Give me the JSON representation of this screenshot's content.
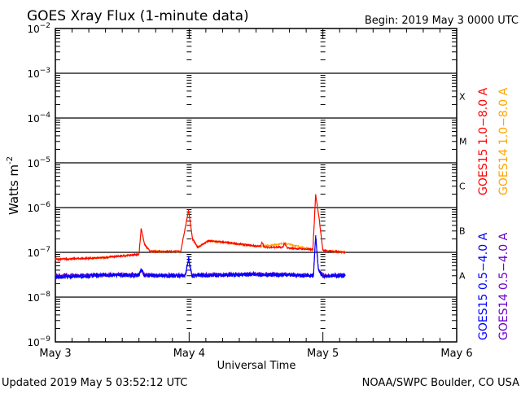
{
  "chart_data": {
    "type": "line",
    "title": "GOES Xray Flux (1-minute data)",
    "begin_label": "Begin:  2019 May 3 0000 UTC",
    "xlabel": "Universal Time",
    "ylabel": "Watts m",
    "ylabel_sup": "-2",
    "yscale": "log",
    "ylim": [
      1e-09,
      0.01
    ],
    "y_ticks": [
      {
        "exp": "-2"
      },
      {
        "exp": "-3"
      },
      {
        "exp": "-4"
      },
      {
        "exp": "-5"
      },
      {
        "exp": "-6"
      },
      {
        "exp": "-7"
      },
      {
        "exp": "-8"
      },
      {
        "exp": "-9"
      }
    ],
    "xlim_hours": [
      0,
      72
    ],
    "x_ticks": [
      {
        "label": "May 3",
        "hour": 0
      },
      {
        "label": "May 4",
        "hour": 24
      },
      {
        "label": "May 5",
        "hour": 48
      },
      {
        "label": "May 6",
        "hour": 72
      }
    ],
    "flare_classes": [
      "X",
      "M",
      "C",
      "B",
      "A"
    ],
    "series": [
      {
        "name": "GOES15 1.0-8.0 A",
        "color": "#ff0000",
        "points": [
          [
            0,
            7e-08
          ],
          [
            8,
            7.5e-08
          ],
          [
            15,
            9e-08
          ],
          [
            15.4,
            3.5e-07
          ],
          [
            16,
            1.5e-07
          ],
          [
            17,
            1.05e-07
          ],
          [
            22.5,
            1.05e-07
          ],
          [
            23.9,
            9e-07
          ],
          [
            24.6,
            2e-07
          ],
          [
            25.5,
            1.3e-07
          ],
          [
            27.5,
            1.8e-07
          ],
          [
            30,
            1.7e-07
          ],
          [
            36.8,
            1.35e-07
          ],
          [
            37.1,
            1.7e-07
          ],
          [
            37.5,
            1.3e-07
          ],
          [
            40.8,
            1.3e-07
          ],
          [
            41.1,
            1.6e-07
          ],
          [
            41.6,
            1.25e-07
          ],
          [
            46.2,
            1.15e-07
          ],
          [
            46.7,
            2e-06
          ],
          [
            47.3,
            6e-07
          ],
          [
            48,
            1.1e-07
          ],
          [
            52,
            1e-07
          ]
        ]
      },
      {
        "name": "GOES14 1.0-8.0 A",
        "color": "#ffa500",
        "points": [
          [
            0,
            7e-08
          ],
          [
            8,
            7.5e-08
          ],
          [
            15,
            9e-08
          ],
          [
            15.4,
            3.3e-07
          ],
          [
            16,
            1.5e-07
          ],
          [
            17,
            1.05e-07
          ],
          [
            22.5,
            1.05e-07
          ],
          [
            23.9,
            8.5e-07
          ],
          [
            24.6,
            2e-07
          ],
          [
            25.5,
            1.3e-07
          ],
          [
            27.5,
            1.8e-07
          ],
          [
            36.8,
            1.35e-07
          ],
          [
            41.1,
            1.6e-07
          ],
          [
            46.2,
            1.15e-07
          ],
          [
            46.7,
            1.9e-06
          ],
          [
            47.3,
            6e-07
          ],
          [
            48,
            1.1e-07
          ],
          [
            52,
            1e-07
          ]
        ]
      },
      {
        "name": "GOES15 0.5-4.0 A",
        "color": "#0000ff",
        "points": [
          [
            0,
            2.8e-08
          ],
          [
            10,
            3.1e-08
          ],
          [
            15,
            3e-08
          ],
          [
            15.4,
            4.2e-08
          ],
          [
            16,
            3e-08
          ],
          [
            23.3,
            3e-08
          ],
          [
            23.9,
            7.5e-08
          ],
          [
            24.5,
            3e-08
          ],
          [
            36,
            3.2e-08
          ],
          [
            46.3,
            3e-08
          ],
          [
            46.7,
            2.5e-07
          ],
          [
            47.2,
            4e-08
          ],
          [
            48,
            3e-08
          ],
          [
            52,
            3e-08
          ]
        ]
      },
      {
        "name": "GOES14 0.5-4.0 A",
        "color": "#6a00c8",
        "points": [
          [
            0,
            3e-08
          ],
          [
            10,
            3.2e-08
          ],
          [
            15,
            3.1e-08
          ],
          [
            15.4,
            4e-08
          ],
          [
            16,
            3.1e-08
          ],
          [
            23.3,
            3.1e-08
          ],
          [
            23.9,
            7e-08
          ],
          [
            24.5,
            3.1e-08
          ],
          [
            36,
            3.3e-08
          ],
          [
            46.3,
            3.1e-08
          ],
          [
            46.7,
            2.2e-07
          ],
          [
            47.2,
            4e-08
          ],
          [
            48,
            3.1e-08
          ],
          [
            52,
            3.1e-08
          ]
        ]
      }
    ]
  },
  "footer": {
    "updated": "Updated 2019 May  5 03:52:12 UTC",
    "credit": "NOAA/SWPC Boulder, CO USA"
  }
}
